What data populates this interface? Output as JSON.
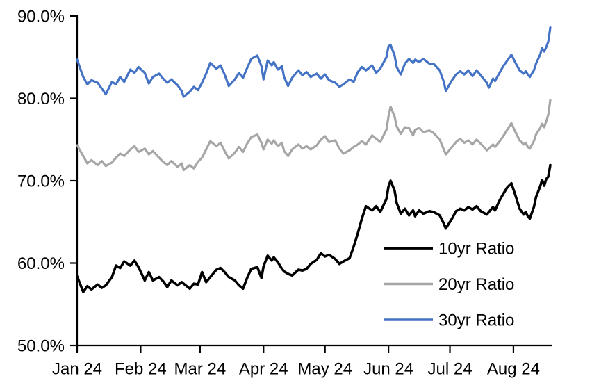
{
  "chart_data": {
    "type": "line",
    "title": "",
    "xlabel": "",
    "ylabel": "",
    "grid": "off",
    "legend_position": "inside-lower-right",
    "ylim": [
      50,
      90
    ],
    "y_axis": {
      "tick_format": "percent_one_decimal",
      "ticks": [
        {
          "value": 90,
          "label": "90.0%"
        },
        {
          "value": 80,
          "label": "80.0%"
        },
        {
          "value": 70,
          "label": "70.0%"
        },
        {
          "value": 60,
          "label": "60.0%"
        },
        {
          "value": 50,
          "label": "50.0%"
        }
      ]
    },
    "x_axis": {
      "unit": "days since 2024-01-01",
      "range_days": [
        0,
        231
      ],
      "ticks": [
        {
          "day": 0,
          "label": "Jan 24"
        },
        {
          "day": 31,
          "label": "Feb 24"
        },
        {
          "day": 60,
          "label": "Mar 24"
        },
        {
          "day": 91,
          "label": "Apr 24"
        },
        {
          "day": 121,
          "label": "May 24"
        },
        {
          "day": 152,
          "label": "Jun 24"
        },
        {
          "day": 182,
          "label": "Jul 24"
        },
        {
          "day": 213,
          "label": "Aug 24"
        }
      ]
    },
    "x_days": [
      0,
      3,
      5,
      7,
      10,
      12,
      14,
      17,
      19,
      21,
      23,
      26,
      28,
      30,
      33,
      35,
      37,
      40,
      42,
      44,
      46,
      49,
      51,
      52,
      55,
      57,
      59,
      61,
      63,
      65,
      68,
      70,
      72,
      74,
      77,
      79,
      81,
      83,
      85,
      88,
      90,
      91,
      93,
      95,
      96,
      98,
      100,
      101,
      103,
      105,
      108,
      110,
      112,
      114,
      117,
      119,
      121,
      123,
      126,
      128,
      130,
      133,
      135,
      137,
      139,
      141,
      144,
      146,
      148,
      151,
      152,
      153,
      155,
      156,
      158,
      160,
      162,
      164,
      165,
      167,
      169,
      172,
      174,
      177,
      179,
      180,
      183,
      185,
      187,
      189,
      191,
      193,
      195,
      197,
      200,
      201,
      203,
      204,
      206,
      208,
      210,
      212,
      214,
      216,
      218,
      219,
      220,
      221,
      223,
      224,
      226,
      227,
      228,
      229,
      230,
      231
    ],
    "series": [
      {
        "name": "10yr Ratio",
        "color": "#000000",
        "values": [
          58.4,
          56.5,
          57.2,
          56.8,
          57.4,
          57.0,
          57.3,
          58.3,
          59.7,
          59.4,
          60.2,
          59.7,
          60.3,
          59.5,
          57.9,
          58.9,
          57.9,
          58.3,
          57.8,
          57.1,
          57.9,
          57.3,
          57.7,
          57.5,
          56.9,
          57.5,
          57.4,
          58.9,
          57.7,
          58.3,
          59.2,
          59.4,
          58.9,
          58.3,
          57.9,
          57.3,
          56.9,
          58.2,
          59.3,
          59.5,
          58.2,
          59.6,
          60.9,
          60.3,
          60.7,
          60.1,
          59.3,
          59.0,
          58.7,
          58.5,
          59.2,
          59.1,
          59.3,
          59.9,
          60.4,
          61.2,
          60.8,
          61.0,
          60.5,
          59.9,
          60.2,
          60.6,
          62.0,
          63.6,
          65.4,
          66.9,
          66.4,
          66.9,
          66.2,
          67.8,
          69.3,
          70.0,
          68.8,
          67.3,
          66.0,
          66.6,
          65.8,
          66.4,
          65.7,
          66.4,
          66.0,
          66.3,
          66.2,
          65.8,
          64.8,
          64.2,
          65.4,
          66.3,
          66.6,
          66.4,
          66.8,
          66.5,
          66.9,
          66.3,
          65.9,
          66.2,
          66.8,
          66.4,
          67.5,
          68.4,
          69.2,
          69.7,
          68.2,
          66.6,
          65.9,
          66.2,
          65.7,
          65.4,
          66.8,
          68.0,
          69.3,
          70.1,
          69.4,
          70.2,
          70.5,
          71.9
        ]
      },
      {
        "name": "20yr Ratio",
        "color": "#A6A6A6",
        "values": [
          74.3,
          73.0,
          72.1,
          72.5,
          71.9,
          72.4,
          71.8,
          72.2,
          72.8,
          73.3,
          73.0,
          73.8,
          74.2,
          73.5,
          73.9,
          73.2,
          73.6,
          72.8,
          72.3,
          71.9,
          72.4,
          71.7,
          72.1,
          71.3,
          71.9,
          71.5,
          72.3,
          72.8,
          73.8,
          74.8,
          74.2,
          74.6,
          73.6,
          72.7,
          73.4,
          74.1,
          73.5,
          74.5,
          75.3,
          75.6,
          74.6,
          73.8,
          75.0,
          74.5,
          74.9,
          74.2,
          74.6,
          73.6,
          73.0,
          73.8,
          74.4,
          73.9,
          74.2,
          73.8,
          74.3,
          75.0,
          75.4,
          74.7,
          74.9,
          73.9,
          73.3,
          73.7,
          74.1,
          74.4,
          74.8,
          74.4,
          75.5,
          75.1,
          74.7,
          76.2,
          77.8,
          79.0,
          77.8,
          76.6,
          75.7,
          76.5,
          76.4,
          75.5,
          76.2,
          76.4,
          75.9,
          76.1,
          75.8,
          75.0,
          73.8,
          73.2,
          74.1,
          74.7,
          75.1,
          74.6,
          74.9,
          74.4,
          75.0,
          74.5,
          73.7,
          73.9,
          74.4,
          74.1,
          74.7,
          75.4,
          76.2,
          77.0,
          75.9,
          74.9,
          74.4,
          74.6,
          74.1,
          73.9,
          74.8,
          75.6,
          76.4,
          76.9,
          76.5,
          77.2,
          78.0,
          79.8
        ]
      },
      {
        "name": "30yr Ratio",
        "color": "#4472C4",
        "values": [
          84.7,
          82.6,
          81.7,
          82.2,
          81.9,
          81.2,
          80.5,
          82.0,
          81.7,
          82.6,
          82.0,
          83.5,
          83.1,
          83.8,
          83.1,
          81.8,
          82.6,
          83.0,
          82.4,
          81.9,
          82.3,
          81.6,
          80.9,
          80.2,
          80.8,
          81.4,
          81.0,
          81.9,
          83.0,
          84.3,
          83.6,
          84.0,
          82.9,
          81.5,
          82.3,
          83.1,
          82.5,
          83.7,
          84.8,
          85.2,
          83.9,
          82.3,
          84.6,
          84.0,
          84.4,
          83.5,
          83.9,
          82.6,
          81.5,
          82.5,
          83.4,
          82.8,
          83.2,
          82.6,
          83.0,
          82.4,
          82.9,
          82.2,
          81.9,
          81.4,
          81.7,
          82.3,
          82.0,
          83.2,
          83.8,
          83.4,
          84.0,
          83.1,
          83.6,
          85.0,
          86.3,
          86.5,
          85.2,
          83.8,
          82.9,
          84.2,
          84.8,
          84.3,
          84.7,
          84.4,
          84.8,
          84.2,
          84.2,
          83.4,
          82.0,
          80.9,
          82.2,
          82.9,
          83.3,
          82.9,
          83.4,
          82.7,
          83.4,
          82.8,
          81.9,
          81.3,
          82.4,
          82.1,
          83.0,
          83.9,
          84.6,
          85.3,
          84.3,
          83.4,
          83.0,
          83.3,
          82.9,
          82.6,
          83.4,
          84.2,
          85.3,
          86.1,
          85.7,
          86.2,
          86.9,
          88.6
        ]
      }
    ]
  }
}
